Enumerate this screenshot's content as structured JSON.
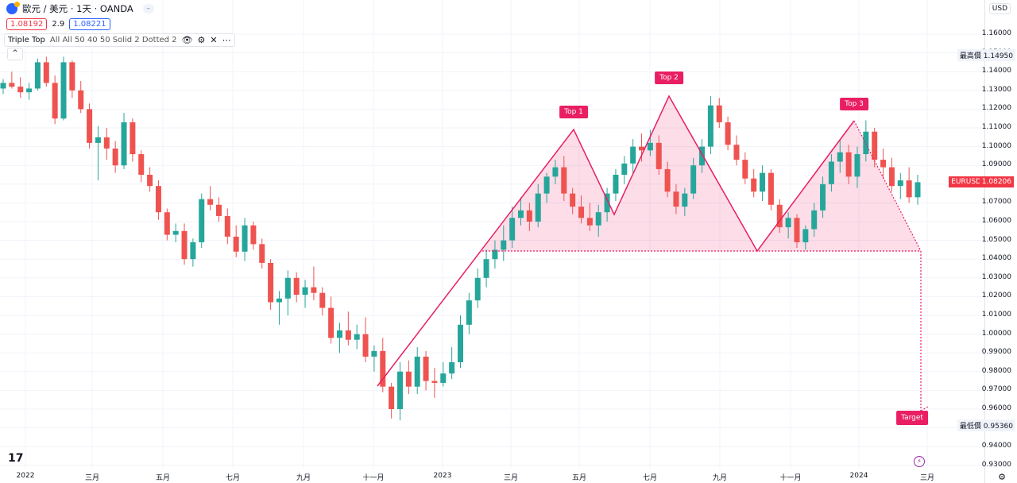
{
  "header": {
    "symbol": "歐元 / 美元 · 1天 · OANDA",
    "toggle_icon": "minus-icon"
  },
  "prices": {
    "sell": "1.08192",
    "spread": "2.9",
    "buy": "1.08221"
  },
  "indicator": {
    "name": "Triple Top",
    "args": "All All 50 40 50 Solid 2 Dotted 2",
    "icons": [
      "eye-icon",
      "gear-icon",
      "close-icon",
      "more-icon"
    ]
  },
  "axis": {
    "currency": "USD",
    "price_ticks": [
      "1.16000",
      "1.15000",
      "1.14000",
      "1.13000",
      "1.12000",
      "1.11000",
      "1.10000",
      "1.09000",
      "1.08000",
      "1.07000",
      "1.06000",
      "1.05000",
      "1.04000",
      "1.03000",
      "1.02000",
      "1.01000",
      "1.00000",
      "0.99000",
      "0.98000",
      "0.97000",
      "0.96000",
      "0.95000",
      "0.94000",
      "0.93000"
    ],
    "high_label": "最高價",
    "high_value": "1.14950",
    "low_label": "最低價",
    "low_value": "0.95360",
    "current_symbol": "EURUSD",
    "current_value": "1.08206"
  },
  "time_axis": {
    "ticks": [
      "2022",
      "三月",
      "五月",
      "七月",
      "九月",
      "十一月",
      "2023",
      "三月",
      "五月",
      "七月",
      "九月",
      "十一月",
      "2024",
      "三月"
    ]
  },
  "annotations": {
    "top1": "Top 1",
    "top2": "Top 2",
    "top3": "Top 3",
    "target": "Target"
  },
  "colors": {
    "up": "#26a69a",
    "down": "#ef5350",
    "pattern": "#e91e63",
    "fill": "rgba(233,30,99,0.15)"
  },
  "chart_data": {
    "type": "candlestick",
    "symbol": "EURUSD",
    "ylim": [
      0.93,
      1.165
    ],
    "pattern_points": [
      {
        "label": "start",
        "date": "2022-11-03",
        "price": 0.9735
      },
      {
        "label": "Top 1",
        "date": "2023-04-26",
        "price": 1.1095
      },
      {
        "label": "valley",
        "date": "2023-05-31",
        "price": 1.0635
      },
      {
        "label": "Top 2",
        "date": "2023-07-18",
        "price": 1.1275
      },
      {
        "label": "neckline",
        "date": "2023-10-03",
        "price": 1.045
      },
      {
        "label": "Top 3",
        "date": "2023-12-28",
        "price": 1.114
      },
      {
        "label": "end",
        "date": "2024-02-12",
        "price": 1.045
      }
    ],
    "neckline": 1.045,
    "target": 0.9615,
    "series": [
      {
        "values": [
          [
            1.131,
            1.136,
            1.128,
            1.134
          ],
          [
            1.134,
            1.14,
            1.131,
            1.132
          ],
          [
            1.132,
            1.137,
            1.126,
            1.129
          ],
          [
            1.129,
            1.134,
            1.125,
            1.131
          ],
          [
            1.131,
            1.147,
            1.13,
            1.145
          ],
          [
            1.145,
            1.148,
            1.132,
            1.134
          ],
          [
            1.134,
            1.138,
            1.112,
            1.115
          ],
          [
            1.115,
            1.148,
            1.114,
            1.145
          ],
          [
            1.145,
            1.146,
            1.126,
            1.13
          ],
          [
            1.13,
            1.135,
            1.118,
            1.12
          ],
          [
            1.12,
            1.123,
            1.099,
            1.102
          ],
          [
            1.102,
            1.111,
            1.082,
            1.105
          ],
          [
            1.105,
            1.11,
            1.093,
            1.099
          ],
          [
            1.099,
            1.103,
            1.086,
            1.09
          ],
          [
            1.09,
            1.118,
            1.088,
            1.113
          ],
          [
            1.113,
            1.115,
            1.092,
            1.096
          ],
          [
            1.096,
            1.098,
            1.081,
            1.085
          ],
          [
            1.085,
            1.089,
            1.076,
            1.079
          ],
          [
            1.079,
            1.082,
            1.061,
            1.065
          ],
          [
            1.065,
            1.067,
            1.05,
            1.053
          ],
          [
            1.053,
            1.059,
            1.049,
            1.055
          ],
          [
            1.055,
            1.059,
            1.037,
            1.04
          ],
          [
            1.04,
            1.051,
            1.036,
            1.049
          ],
          [
            1.049,
            1.075,
            1.046,
            1.072
          ],
          [
            1.072,
            1.079,
            1.066,
            1.069
          ],
          [
            1.069,
            1.073,
            1.06,
            1.063
          ],
          [
            1.063,
            1.067,
            1.048,
            1.052
          ],
          [
            1.052,
            1.058,
            1.041,
            1.044
          ],
          [
            1.044,
            1.062,
            1.039,
            1.058
          ],
          [
            1.058,
            1.06,
            1.045,
            1.048
          ],
          [
            1.048,
            1.051,
            1.035,
            1.038
          ],
          [
            1.038,
            1.04,
            1.013,
            1.017
          ],
          [
            1.017,
            1.023,
            1.005,
            1.019
          ],
          [
            1.019,
            1.034,
            1.01,
            1.03
          ],
          [
            1.03,
            1.033,
            1.017,
            1.021
          ],
          [
            1.021,
            1.029,
            1.014,
            1.025
          ],
          [
            1.025,
            1.036,
            1.018,
            1.022
          ],
          [
            1.022,
            1.025,
            1.01,
            1.014
          ],
          [
            1.014,
            1.02,
            0.995,
            0.998
          ],
          [
            0.998,
            1.006,
            0.99,
            1.002
          ],
          [
            1.002,
            1.012,
            0.994,
            0.997
          ],
          [
            0.997,
            1.005,
            0.992,
            1.0
          ],
          [
            1.0,
            1.009,
            0.985,
            0.988
          ],
          [
            0.988,
            0.994,
            0.98,
            0.991
          ],
          [
            0.991,
            0.998,
            0.969,
            0.972
          ],
          [
            0.972,
            0.974,
            0.955,
            0.96
          ],
          [
            0.96,
            0.985,
            0.954,
            0.98
          ],
          [
            0.98,
            0.986,
            0.968,
            0.972
          ],
          [
            0.972,
            0.993,
            0.968,
            0.988
          ],
          [
            0.988,
            0.991,
            0.97,
            0.975
          ],
          [
            0.975,
            0.982,
            0.966,
            0.974
          ],
          [
            0.974,
            0.985,
            0.972,
            0.979
          ],
          [
            0.979,
            0.993,
            0.976,
            0.985
          ],
          [
            0.985,
            1.01,
            0.982,
            1.005
          ],
          [
            1.005,
            1.022,
            1.0,
            1.018
          ],
          [
            1.018,
            1.035,
            1.014,
            1.03
          ],
          [
            1.03,
            1.045,
            1.025,
            1.04
          ],
          [
            1.04,
            1.05,
            1.035,
            1.045
          ],
          [
            1.045,
            1.058,
            1.039,
            1.05
          ],
          [
            1.05,
            1.068,
            1.046,
            1.062
          ],
          [
            1.062,
            1.073,
            1.058,
            1.066
          ],
          [
            1.066,
            1.07,
            1.055,
            1.06
          ],
          [
            1.06,
            1.08,
            1.057,
            1.075
          ],
          [
            1.075,
            1.086,
            1.07,
            1.084
          ],
          [
            1.084,
            1.093,
            1.08,
            1.089
          ],
          [
            1.089,
            1.095,
            1.071,
            1.075
          ],
          [
            1.075,
            1.078,
            1.064,
            1.068
          ],
          [
            1.068,
            1.074,
            1.059,
            1.062
          ],
          [
            1.062,
            1.07,
            1.055,
            1.058
          ],
          [
            1.058,
            1.069,
            1.052,
            1.065
          ],
          [
            1.065,
            1.078,
            1.06,
            1.075
          ],
          [
            1.075,
            1.088,
            1.071,
            1.085
          ],
          [
            1.085,
            1.095,
            1.08,
            1.091
          ],
          [
            1.091,
            1.104,
            1.086,
            1.1
          ],
          [
            1.1,
            1.107,
            1.092,
            1.098
          ],
          [
            1.098,
            1.109,
            1.095,
            1.102
          ],
          [
            1.102,
            1.106,
            1.085,
            1.088
          ],
          [
            1.088,
            1.092,
            1.073,
            1.076
          ],
          [
            1.076,
            1.08,
            1.064,
            1.068
          ],
          [
            1.068,
            1.078,
            1.063,
            1.075
          ],
          [
            1.075,
            1.094,
            1.072,
            1.09
          ],
          [
            1.09,
            1.104,
            1.086,
            1.1
          ],
          [
            1.1,
            1.127,
            1.096,
            1.122
          ],
          [
            1.122,
            1.126,
            1.11,
            1.113
          ],
          [
            1.113,
            1.116,
            1.098,
            1.101
          ],
          [
            1.101,
            1.106,
            1.09,
            1.093
          ],
          [
            1.093,
            1.097,
            1.08,
            1.083
          ],
          [
            1.083,
            1.088,
            1.073,
            1.076
          ],
          [
            1.076,
            1.09,
            1.071,
            1.086
          ],
          [
            1.086,
            1.088,
            1.066,
            1.069
          ],
          [
            1.069,
            1.072,
            1.054,
            1.057
          ],
          [
            1.057,
            1.065,
            1.051,
            1.062
          ],
          [
            1.062,
            1.064,
            1.046,
            1.049
          ],
          [
            1.049,
            1.058,
            1.045,
            1.056
          ],
          [
            1.056,
            1.07,
            1.052,
            1.066
          ],
          [
            1.066,
            1.084,
            1.062,
            1.08
          ],
          [
            1.08,
            1.096,
            1.076,
            1.092
          ],
          [
            1.092,
            1.104,
            1.086,
            1.097
          ],
          [
            1.097,
            1.101,
            1.08,
            1.084
          ],
          [
            1.084,
            1.1,
            1.078,
            1.096
          ],
          [
            1.096,
            1.114,
            1.092,
            1.108
          ],
          [
            1.108,
            1.11,
            1.089,
            1.093
          ],
          [
            1.093,
            1.099,
            1.083,
            1.089
          ],
          [
            1.089,
            1.094,
            1.076,
            1.079
          ],
          [
            1.079,
            1.086,
            1.072,
            1.082
          ],
          [
            1.082,
            1.089,
            1.07,
            1.073
          ],
          [
            1.073,
            1.085,
            1.069,
            1.081
          ]
        ]
      }
    ]
  }
}
